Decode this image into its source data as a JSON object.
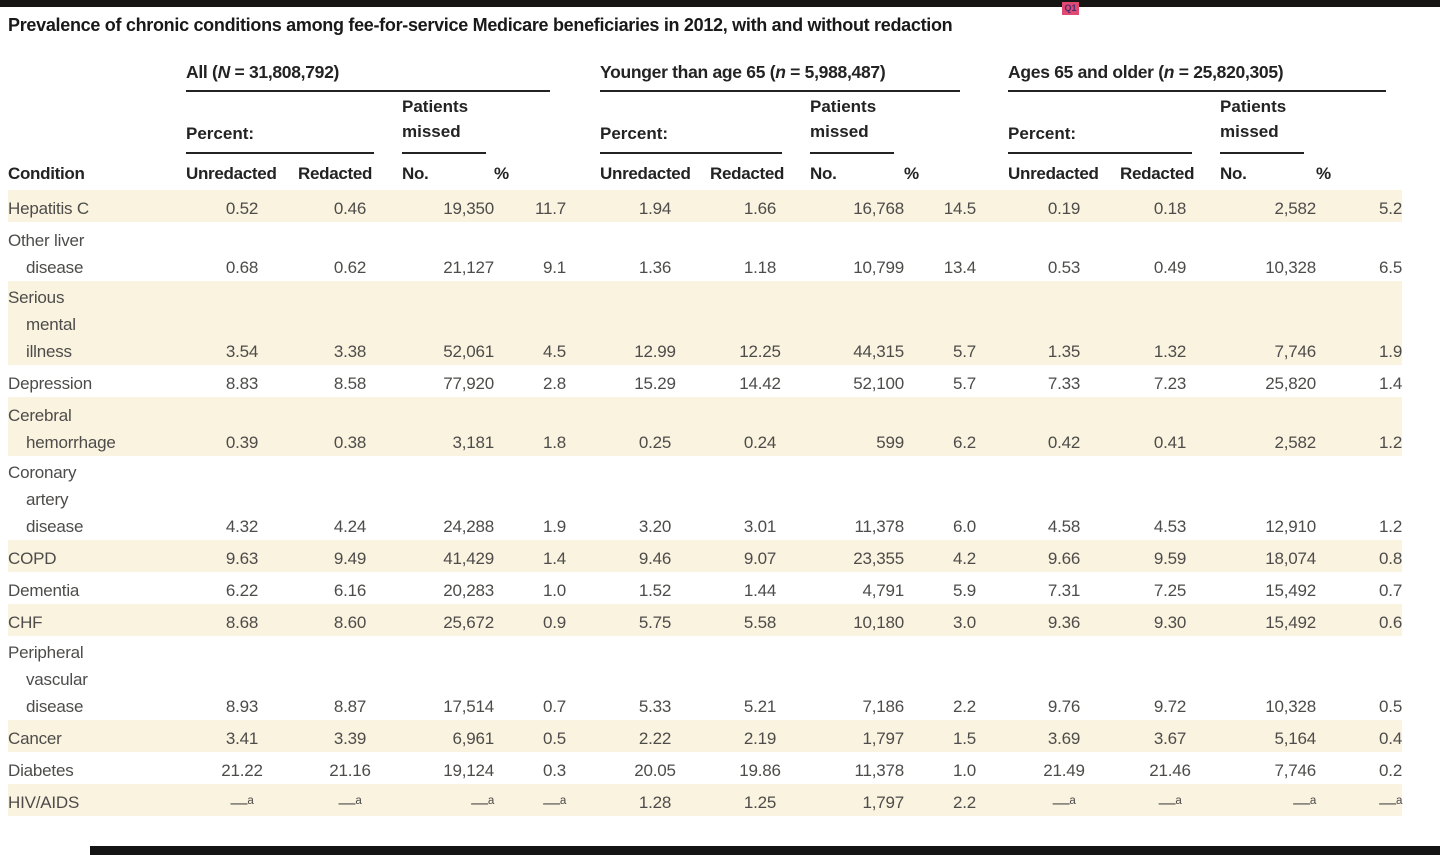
{
  "page": {
    "title": "Prevalence of chronic conditions among fee-for-service Medicare beneficiaries in 2012, with and without redaction",
    "query_marker": "Q1"
  },
  "colors": {
    "row_shade": "#faf3e0",
    "rule": "#232323",
    "query_badge_bg": "#e04a72",
    "top_bar": "#171514",
    "data_text": "#4d4c4a"
  },
  "table": {
    "condition_label": "Condition",
    "percent_label": "Percent:",
    "missed_label": "Patients missed",
    "col_headers": [
      "Unredacted",
      "Redacted",
      "No.",
      "%"
    ],
    "groups": [
      {
        "pre": "All (",
        "var": "N",
        "post": " = 31,808,792)"
      },
      {
        "pre": "Younger than age 65 (",
        "var": "n",
        "post": " = 5,988,487)"
      },
      {
        "pre": "Ages 65 and older (",
        "var": "n",
        "post": " = 25,820,305)"
      }
    ],
    "rows": [
      {
        "condition_lines": [
          "Hepatitis C"
        ],
        "shaded": true,
        "cells": [
          "0.52",
          "0.46",
          "19,350",
          "11.7",
          "1.94",
          "1.66",
          "16,768",
          "14.5",
          "0.19",
          "0.18",
          "2,582",
          "5.2"
        ]
      },
      {
        "condition_lines": [
          "Other liver",
          "disease"
        ],
        "shaded": false,
        "cells": [
          "0.68",
          "0.62",
          "21,127",
          "9.1",
          "1.36",
          "1.18",
          "10,799",
          "13.4",
          "0.53",
          "0.49",
          "10,328",
          "6.5"
        ]
      },
      {
        "condition_lines": [
          "Serious",
          "mental",
          "illness"
        ],
        "shaded": true,
        "cells": [
          "3.54",
          "3.38",
          "52,061",
          "4.5",
          "12.99",
          "12.25",
          "44,315",
          "5.7",
          "1.35",
          "1.32",
          "7,746",
          "1.9"
        ]
      },
      {
        "condition_lines": [
          "Depression"
        ],
        "shaded": false,
        "cells": [
          "8.83",
          "8.58",
          "77,920",
          "2.8",
          "15.29",
          "14.42",
          "52,100",
          "5.7",
          "7.33",
          "7.23",
          "25,820",
          "1.4"
        ]
      },
      {
        "condition_lines": [
          "Cerebral",
          "hemorrhage"
        ],
        "shaded": true,
        "cells": [
          "0.39",
          "0.38",
          "3,181",
          "1.8",
          "0.25",
          "0.24",
          "599",
          "6.2",
          "0.42",
          "0.41",
          "2,582",
          "1.2"
        ]
      },
      {
        "condition_lines": [
          "Coronary",
          "artery",
          "disease"
        ],
        "shaded": false,
        "cells": [
          "4.32",
          "4.24",
          "24,288",
          "1.9",
          "3.20",
          "3.01",
          "11,378",
          "6.0",
          "4.58",
          "4.53",
          "12,910",
          "1.2"
        ]
      },
      {
        "condition_lines": [
          "COPD"
        ],
        "shaded": true,
        "cells": [
          "9.63",
          "9.49",
          "41,429",
          "1.4",
          "9.46",
          "9.07",
          "23,355",
          "4.2",
          "9.66",
          "9.59",
          "18,074",
          "0.8"
        ]
      },
      {
        "condition_lines": [
          "Dementia"
        ],
        "shaded": false,
        "cells": [
          "6.22",
          "6.16",
          "20,283",
          "1.0",
          "1.52",
          "1.44",
          "4,791",
          "5.9",
          "7.31",
          "7.25",
          "15,492",
          "0.7"
        ]
      },
      {
        "condition_lines": [
          "CHF"
        ],
        "shaded": true,
        "cells": [
          "8.68",
          "8.60",
          "25,672",
          "0.9",
          "5.75",
          "5.58",
          "10,180",
          "3.0",
          "9.36",
          "9.30",
          "15,492",
          "0.6"
        ]
      },
      {
        "condition_lines": [
          "Peripheral",
          "vascular",
          "disease"
        ],
        "shaded": false,
        "cells": [
          "8.93",
          "8.87",
          "17,514",
          "0.7",
          "5.33",
          "5.21",
          "7,186",
          "2.2",
          "9.76",
          "9.72",
          "10,328",
          "0.5"
        ]
      },
      {
        "condition_lines": [
          "Cancer"
        ],
        "shaded": true,
        "cells": [
          "3.41",
          "3.39",
          "6,961",
          "0.5",
          "2.22",
          "2.19",
          "1,797",
          "1.5",
          "3.69",
          "3.67",
          "5,164",
          "0.4"
        ]
      },
      {
        "condition_lines": [
          "Diabetes"
        ],
        "shaded": false,
        "cells": [
          "21.22",
          "21.16",
          "19,124",
          "0.3",
          "20.05",
          "19.86",
          "11,378",
          "1.0",
          "21.49",
          "21.46",
          "7,746",
          "0.2"
        ]
      },
      {
        "condition_lines": [
          "HIV/AIDS"
        ],
        "shaded": true,
        "cells": [
          "—ᵃ",
          "—ᵃ",
          "—ᵃ",
          "—ᵃ",
          "1.28",
          "1.25",
          "1,797",
          "2.2",
          "—ᵃ",
          "—ᵃ",
          "—ᵃ",
          "—ᵃ"
        ]
      }
    ]
  }
}
